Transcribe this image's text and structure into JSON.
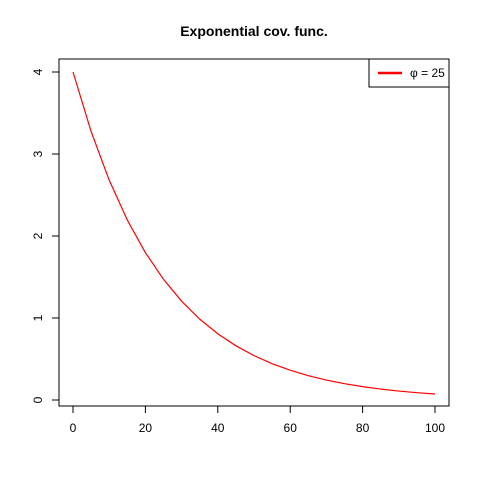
{
  "chart_data": {
    "type": "line",
    "title": "Exponential cov. func.",
    "xlabel": "",
    "ylabel": "",
    "xlim": [
      0,
      100
    ],
    "ylim": [
      0,
      4
    ],
    "x_ticks": [
      0,
      20,
      40,
      60,
      80,
      100
    ],
    "y_ticks": [
      0,
      1,
      2,
      3,
      4
    ],
    "x_tick_labels": [
      "0",
      "20",
      "40",
      "60",
      "80",
      "100"
    ],
    "y_tick_labels": [
      "0",
      "1",
      "2",
      "3",
      "4"
    ],
    "grid": false,
    "legend_position": "top-right",
    "series": [
      {
        "name": "φ = 25",
        "color": "#ff0000",
        "x": [
          0,
          5,
          10,
          15,
          20,
          25,
          30,
          35,
          40,
          45,
          50,
          55,
          60,
          65,
          70,
          75,
          80,
          85,
          90,
          95,
          100
        ],
        "y": [
          4.0,
          3.275,
          2.681,
          2.195,
          1.797,
          1.472,
          1.205,
          0.986,
          0.808,
          0.661,
          0.541,
          0.443,
          0.363,
          0.297,
          0.243,
          0.199,
          0.163,
          0.133,
          0.109,
          0.089,
          0.073
        ]
      }
    ]
  }
}
